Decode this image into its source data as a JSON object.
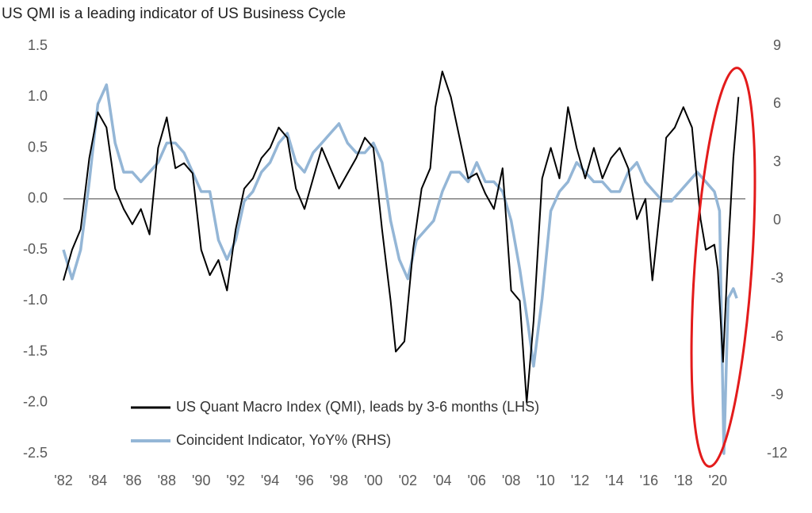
{
  "chart_data": {
    "type": "line",
    "title": "US QMI is a leading indicator of US Business Cycle",
    "xlim": [
      1982,
      2021.6
    ],
    "xticks": [
      {
        "value": 1982,
        "label": "'82"
      },
      {
        "value": 1984,
        "label": "'84"
      },
      {
        "value": 1986,
        "label": "'86"
      },
      {
        "value": 1988,
        "label": "'88"
      },
      {
        "value": 1990,
        "label": "'90"
      },
      {
        "value": 1992,
        "label": "'92"
      },
      {
        "value": 1994,
        "label": "'94"
      },
      {
        "value": 1996,
        "label": "'96"
      },
      {
        "value": 1998,
        "label": "'98"
      },
      {
        "value": 2000,
        "label": "'00"
      },
      {
        "value": 2002,
        "label": "'02"
      },
      {
        "value": 2004,
        "label": "'04"
      },
      {
        "value": 2006,
        "label": "'06"
      },
      {
        "value": 2008,
        "label": "'08"
      },
      {
        "value": 2010,
        "label": "'10"
      },
      {
        "value": 2012,
        "label": "'12"
      },
      {
        "value": 2014,
        "label": "'14"
      },
      {
        "value": 2016,
        "label": "'16"
      },
      {
        "value": 2018,
        "label": "'18"
      },
      {
        "value": 2020,
        "label": "'20"
      }
    ],
    "ylim": [
      -2.5,
      1.5
    ],
    "yticks": [
      {
        "value": -2.5,
        "label": "-2.5"
      },
      {
        "value": -2,
        "label": "-2.0"
      },
      {
        "value": -1.5,
        "label": "-1.5"
      },
      {
        "value": -1,
        "label": "-1.0"
      },
      {
        "value": -0.5,
        "label": "-0.5"
      },
      {
        "value": 0,
        "label": "0.0"
      },
      {
        "value": 0.5,
        "label": "0.5"
      },
      {
        "value": 1,
        "label": "1.0"
      },
      {
        "value": 1.5,
        "label": "1.5"
      }
    ],
    "y2lim": [
      -12,
      9
    ],
    "y2ticks": [
      -12,
      -9,
      -6,
      -3,
      0,
      3,
      6,
      9
    ],
    "series": [
      {
        "name": "US Quant Macro Index (QMI), leads by 3-6 months (LHS)",
        "color": "#000000",
        "axis": "y",
        "x": [
          1982.0,
          1982.5,
          1983.0,
          1983.5,
          1984.0,
          1984.5,
          1985.0,
          1985.5,
          1986.0,
          1986.5,
          1987.0,
          1987.5,
          1988.0,
          1988.5,
          1989.0,
          1989.5,
          1990.0,
          1990.5,
          1991.0,
          1991.5,
          1992.0,
          1992.5,
          1993.0,
          1993.5,
          1994.0,
          1994.5,
          1995.0,
          1995.5,
          1996.0,
          1996.5,
          1997.0,
          1997.5,
          1998.0,
          1998.5,
          1999.0,
          1999.5,
          2000.0,
          2000.5,
          2001.0,
          2001.3,
          2001.8,
          2002.3,
          2002.8,
          2003.3,
          2003.6,
          2004.0,
          2004.5,
          2005.0,
          2005.5,
          2006.0,
          2006.5,
          2007.0,
          2007.5,
          2008.0,
          2008.5,
          2008.9,
          2009.3,
          2009.8,
          2010.3,
          2010.8,
          2011.3,
          2011.8,
          2012.3,
          2012.8,
          2013.3,
          2013.8,
          2014.3,
          2014.8,
          2015.3,
          2015.8,
          2016.2,
          2016.7,
          2017.0,
          2017.5,
          2018.0,
          2018.5,
          2019.0,
          2019.3,
          2019.8,
          2020.0,
          2020.3,
          2020.6,
          2020.9,
          2021.2
        ],
        "values": [
          -0.8,
          -0.5,
          -0.3,
          0.4,
          0.85,
          0.7,
          0.1,
          -0.1,
          -0.25,
          -0.1,
          -0.35,
          0.5,
          0.8,
          0.3,
          0.35,
          0.25,
          -0.5,
          -0.75,
          -0.6,
          -0.9,
          -0.3,
          0.1,
          0.2,
          0.4,
          0.5,
          0.7,
          0.6,
          0.1,
          -0.1,
          0.2,
          0.5,
          0.3,
          0.1,
          0.25,
          0.4,
          0.6,
          0.5,
          -0.3,
          -1.0,
          -1.5,
          -1.4,
          -0.5,
          0.1,
          0.3,
          0.9,
          1.25,
          1.0,
          0.6,
          0.2,
          0.25,
          0.05,
          -0.1,
          0.3,
          -0.9,
          -1.0,
          -2.0,
          -1.2,
          0.2,
          0.5,
          0.2,
          0.9,
          0.5,
          0.2,
          0.5,
          0.2,
          0.4,
          0.5,
          0.3,
          -0.2,
          0.0,
          -0.8,
          0.0,
          0.6,
          0.7,
          0.9,
          0.7,
          -0.2,
          -0.5,
          -0.45,
          -0.7,
          -1.6,
          -0.5,
          0.4,
          1.0
        ]
      },
      {
        "name": "Coincident Indicator, YoY% (RHS)",
        "color": "#94b6d6",
        "axis": "y2",
        "x": [
          1982.0,
          1982.5,
          1983.0,
          1983.5,
          1984.0,
          1984.5,
          1985.0,
          1985.5,
          1986.0,
          1986.5,
          1987.0,
          1987.5,
          1988.0,
          1988.5,
          1989.0,
          1989.5,
          1990.0,
          1990.5,
          1991.0,
          1991.5,
          1992.0,
          1992.5,
          1993.0,
          1993.5,
          1994.0,
          1994.5,
          1995.0,
          1995.5,
          1996.0,
          1996.5,
          1997.0,
          1997.5,
          1998.0,
          1998.5,
          1999.0,
          1999.5,
          2000.0,
          2000.5,
          2001.0,
          2001.5,
          2002.0,
          2002.5,
          2003.0,
          2003.5,
          2004.0,
          2004.5,
          2005.0,
          2005.5,
          2006.0,
          2006.5,
          2007.0,
          2007.5,
          2008.0,
          2008.5,
          2009.0,
          2009.3,
          2009.8,
          2010.3,
          2010.8,
          2011.3,
          2011.8,
          2012.3,
          2012.8,
          2013.3,
          2013.8,
          2014.3,
          2014.8,
          2015.3,
          2015.8,
          2016.3,
          2016.8,
          2017.3,
          2017.8,
          2018.3,
          2018.8,
          2019.3,
          2019.8,
          2020.1,
          2020.35,
          2020.6,
          2020.9,
          2021.1
        ],
        "values": [
          -1.5,
          -3,
          -1.5,
          2,
          6,
          7,
          4,
          2.5,
          2.5,
          2,
          2.5,
          3,
          4,
          4,
          3.5,
          2.5,
          1.5,
          1.5,
          -1,
          -2,
          -1,
          1,
          1.5,
          2.5,
          3,
          4,
          4.5,
          3,
          2.5,
          3.5,
          4,
          4.5,
          5,
          4,
          3.5,
          3.5,
          4,
          3,
          0,
          -2,
          -3,
          -1,
          -0.5,
          0,
          1.5,
          2.5,
          2.5,
          2,
          3,
          2,
          2,
          1.5,
          0,
          -2.5,
          -5.5,
          -7.5,
          -4,
          0.5,
          1.5,
          2,
          3,
          2.5,
          2,
          2,
          1.5,
          1.5,
          2.5,
          3,
          2,
          1.5,
          1,
          1,
          1.5,
          2,
          2.5,
          2,
          1.5,
          0.5,
          -12,
          -4,
          -3.5,
          -4
        ]
      }
    ]
  }
}
